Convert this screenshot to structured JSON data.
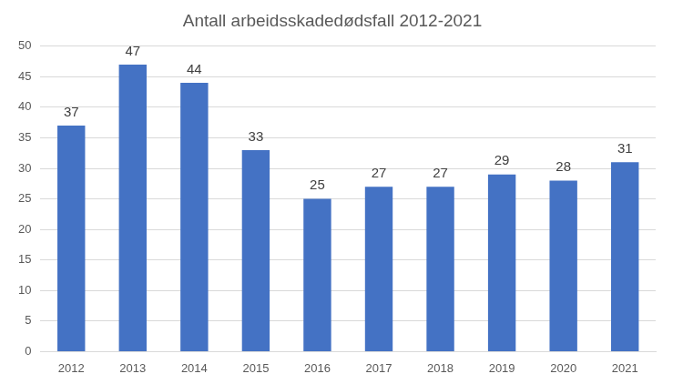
{
  "chart_data": {
    "type": "bar",
    "title": "Antall arbeidsskadedødsfall 2012-2021",
    "categories": [
      "2012",
      "2013",
      "2014",
      "2015",
      "2016",
      "2017",
      "2018",
      "2019",
      "2020",
      "2021"
    ],
    "values": [
      37,
      47,
      44,
      33,
      25,
      27,
      27,
      29,
      28,
      31
    ],
    "color": "#4472c4",
    "ylim": [
      0,
      50
    ],
    "yticks": [
      0,
      5,
      10,
      15,
      20,
      25,
      30,
      35,
      40,
      45,
      50
    ],
    "grid": true,
    "data_labels": true
  }
}
